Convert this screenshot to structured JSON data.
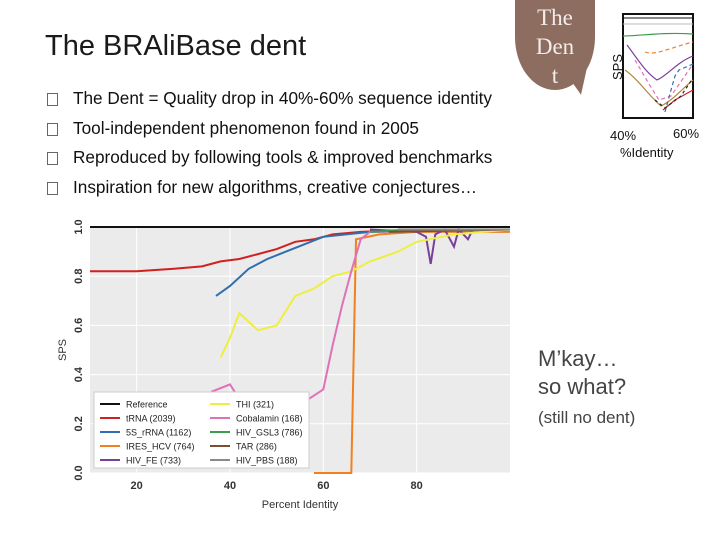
{
  "slide": {
    "title": "The BRAliBase dent",
    "bullets": [
      "The Dent = Quality drop in 40%-60% sequence identity",
      "Tool-independent phenomenon found in 2005",
      "Reproduced by following tools & improved benchmarks",
      "Inspiration for new algorithms, creative conjectures…"
    ],
    "bubble_lines": [
      "The",
      "Den",
      "t"
    ],
    "remark_lines": [
      "M’kay…",
      "so what?"
    ],
    "remark_note": "(still no dent)"
  },
  "inset_chart": {
    "ylabel": "SPS",
    "xticks": [
      "40%",
      "60%"
    ],
    "xlabel": "%Identity"
  },
  "chart_data": {
    "type": "line",
    "xlabel": "Percent Identity",
    "ylabel": "SPS",
    "xlim": [
      10,
      100
    ],
    "ylim": [
      0,
      1
    ],
    "xticks": [
      20,
      40,
      60,
      80
    ],
    "yticks": [
      0.0,
      0.2,
      0.4,
      0.6,
      0.8,
      1.0
    ],
    "xtick_labels": [
      "20",
      "40",
      "60",
      "80"
    ],
    "ytick_labels": [
      "0.0",
      "0.2",
      "0.4",
      "0.6",
      "0.8",
      "1.0"
    ],
    "legend_position": "bottom-left",
    "series": [
      {
        "name": "Reference",
        "color": "#111111",
        "points": [
          [
            10,
            1.0
          ],
          [
            100,
            1.0
          ]
        ]
      },
      {
        "name": "tRNA (2039)",
        "color": "#d02020",
        "points": [
          [
            10,
            0.82
          ],
          [
            20,
            0.82
          ],
          [
            28,
            0.83
          ],
          [
            34,
            0.84
          ],
          [
            38,
            0.86
          ],
          [
            42,
            0.87
          ],
          [
            46,
            0.89
          ],
          [
            50,
            0.91
          ],
          [
            54,
            0.94
          ],
          [
            58,
            0.95
          ],
          [
            62,
            0.97
          ],
          [
            68,
            0.98
          ],
          [
            80,
            0.99
          ],
          [
            100,
            0.99
          ]
        ]
      },
      {
        "name": "5S_rRNA (1162)",
        "color": "#2f6fb0",
        "points": [
          [
            37,
            0.72
          ],
          [
            40,
            0.76
          ],
          [
            44,
            0.83
          ],
          [
            48,
            0.87
          ],
          [
            52,
            0.9
          ],
          [
            56,
            0.93
          ],
          [
            60,
            0.96
          ],
          [
            70,
            0.98
          ],
          [
            100,
            0.99
          ]
        ]
      },
      {
        "name": "IRES_HCV (764)",
        "color": "#f08020",
        "points": [
          [
            58,
            0.0
          ],
          [
            66,
            0.0
          ],
          [
            67,
            0.95
          ],
          [
            72,
            0.97
          ],
          [
            80,
            0.98
          ],
          [
            100,
            0.98
          ]
        ]
      },
      {
        "name": "HIV_FE (733)",
        "color": "#7a3f98",
        "points": [
          [
            70,
            0.99
          ],
          [
            80,
            0.98
          ],
          [
            82,
            0.96
          ],
          [
            83,
            0.85
          ],
          [
            84,
            0.97
          ],
          [
            86,
            0.99
          ],
          [
            88,
            0.92
          ],
          [
            89,
            0.99
          ],
          [
            91,
            0.95
          ],
          [
            92,
            0.99
          ],
          [
            100,
            0.99
          ]
        ]
      },
      {
        "name": "THI (321)",
        "color": "#eeee40",
        "points": [
          [
            38,
            0.47
          ],
          [
            40,
            0.55
          ],
          [
            42,
            0.65
          ],
          [
            46,
            0.58
          ],
          [
            50,
            0.6
          ],
          [
            54,
            0.72
          ],
          [
            58,
            0.75
          ],
          [
            62,
            0.8
          ],
          [
            66,
            0.82
          ],
          [
            70,
            0.86
          ],
          [
            76,
            0.9
          ],
          [
            80,
            0.94
          ],
          [
            88,
            0.97
          ],
          [
            100,
            0.99
          ]
        ]
      },
      {
        "name": "Cobalamin (168)",
        "color": "#e070b8",
        "points": [
          [
            36,
            0.33
          ],
          [
            40,
            0.36
          ],
          [
            42,
            0.3
          ],
          [
            44,
            0.25
          ],
          [
            48,
            0.22
          ],
          [
            52,
            0.23
          ],
          [
            56,
            0.29
          ],
          [
            60,
            0.34
          ],
          [
            62,
            0.52
          ],
          [
            64,
            0.68
          ],
          [
            66,
            0.82
          ],
          [
            68,
            0.95
          ],
          [
            70,
            0.98
          ],
          [
            100,
            0.99
          ]
        ]
      },
      {
        "name": "HIV_GSL3 (786)",
        "color": "#3a9e4a",
        "points": [
          [
            70,
            0.98
          ],
          [
            80,
            0.99
          ],
          [
            100,
            0.99
          ]
        ]
      },
      {
        "name": "TAR (286)",
        "color": "#7a5030",
        "points": [
          [
            74,
            0.98
          ],
          [
            100,
            0.99
          ]
        ]
      },
      {
        "name": "HIV_PBS (188)",
        "color": "#8a8a8a",
        "points": [
          [
            76,
            0.99
          ],
          [
            100,
            0.99
          ]
        ]
      }
    ]
  }
}
